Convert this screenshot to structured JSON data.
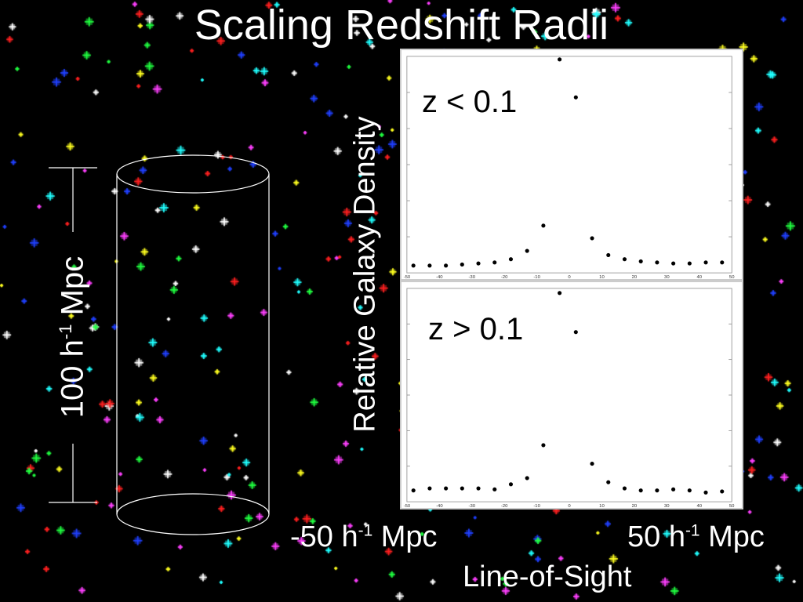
{
  "title": "Scaling Redshift Radii",
  "scale_bar": {
    "value": "100 h",
    "exponent": "-1",
    "unit": "Mpc"
  },
  "ylabel": "Relative Galaxy Density",
  "x_min_label": {
    "value": "-50 h",
    "exponent": "-1",
    "unit": "Mpc"
  },
  "x_max_label": {
    "value": "50 h",
    "exponent": "-1",
    "unit": "Mpc"
  },
  "xlabel": "Line-of-Sight",
  "colors": {
    "background": "#000000",
    "text": "#ffffff",
    "panel": "#ffffff",
    "points": "#000000",
    "stars": [
      "#ff2020",
      "#20ff40",
      "#2040ff",
      "#ffff20",
      "#20ffff",
      "#ff40ff",
      "#ffffff"
    ]
  },
  "chart_data": [
    {
      "type": "scatter",
      "title": "z < 0.1",
      "x": [
        -48,
        -43,
        -38,
        -33,
        -28,
        -23,
        -18,
        -13,
        -8,
        -3,
        2,
        7,
        12,
        17,
        22,
        27,
        32,
        37,
        42,
        47
      ],
      "y": [
        0.02,
        0.02,
        0.02,
        0.025,
        0.03,
        0.035,
        0.05,
        0.09,
        0.21,
        1.0,
        0.82,
        0.15,
        0.07,
        0.05,
        0.04,
        0.035,
        0.03,
        0.03,
        0.035,
        0.035
      ],
      "xlim": [
        -50,
        50
      ],
      "x_ticks": [
        -50,
        -40,
        -30,
        -20,
        -10,
        0,
        10,
        20,
        30,
        40,
        50
      ]
    },
    {
      "type": "scatter",
      "title": "z > 0.1",
      "x": [
        -48,
        -43,
        -38,
        -33,
        -28,
        -23,
        -18,
        -13,
        -8,
        -3,
        2,
        7,
        12,
        17,
        22,
        27,
        32,
        37,
        42,
        47
      ],
      "y": [
        0.04,
        0.05,
        0.05,
        0.05,
        0.05,
        0.045,
        0.07,
        0.1,
        0.26,
        1.0,
        0.81,
        0.17,
        0.08,
        0.05,
        0.04,
        0.04,
        0.045,
        0.04,
        0.03,
        0.035
      ],
      "xlim": [
        -50,
        50
      ],
      "x_ticks": [
        -50,
        -40,
        -30,
        -20,
        -10,
        0,
        10,
        20,
        30,
        40,
        50
      ]
    }
  ]
}
